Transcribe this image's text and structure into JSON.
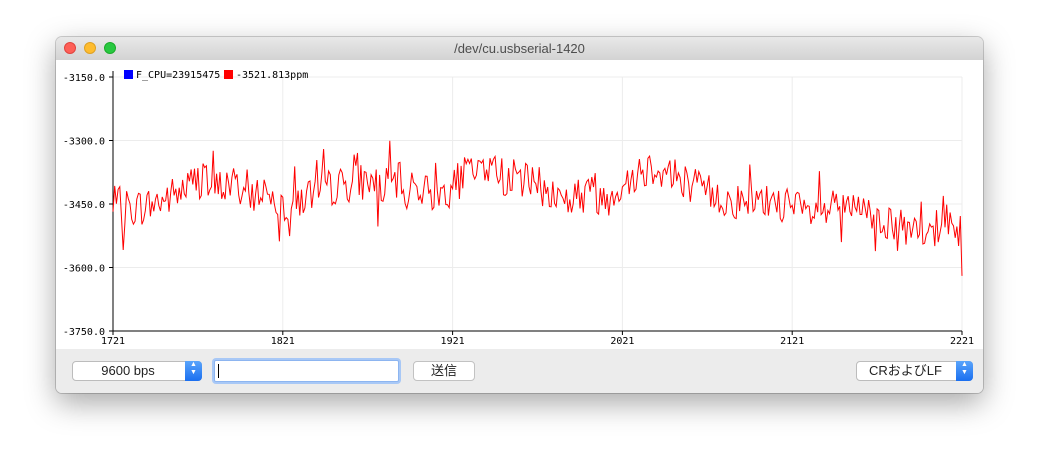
{
  "window": {
    "title": "/dev/cu.usbserial-1420"
  },
  "controls": {
    "baud_rate": "9600 bps",
    "input_value": "",
    "send_label": "送信",
    "line_ending": "CRおよびLF"
  },
  "icons": {
    "stepper": "up-down-chevron-icon"
  },
  "colors": {
    "series1": "#0000ff",
    "series2": "#ff0000",
    "accent": "#1a6ff0"
  },
  "chart_data": {
    "type": "line",
    "title": "",
    "xlabel": "",
    "ylabel": "",
    "xlim": [
      1721,
      2221
    ],
    "ylim": [
      -3750,
      -3150
    ],
    "xticks": [
      "1721",
      "1821",
      "1921",
      "2021",
      "2121",
      "2221"
    ],
    "yticks": [
      "-3150.0",
      "-3300.0",
      "-3450.0",
      "-3600.0",
      "-3750.0"
    ],
    "grid": true,
    "legend_position": "top-left",
    "series": [
      {
        "name": "F_CPU=23915475",
        "color": "#0000ff",
        "values": []
      },
      {
        "name": "-3521.813ppm",
        "color": "#ff0000",
        "anchors": [
          [
            1721,
            -3450
          ],
          [
            1731,
            -3460
          ],
          [
            1741,
            -3455
          ],
          [
            1751,
            -3440
          ],
          [
            1761,
            -3420
          ],
          [
            1771,
            -3390
          ],
          [
            1781,
            -3415
          ],
          [
            1791,
            -3400
          ],
          [
            1801,
            -3430
          ],
          [
            1811,
            -3415
          ],
          [
            1821,
            -3450
          ],
          [
            1831,
            -3440
          ],
          [
            1841,
            -3420
          ],
          [
            1851,
            -3410
          ],
          [
            1861,
            -3400
          ],
          [
            1871,
            -3395
          ],
          [
            1881,
            -3410
          ],
          [
            1891,
            -3395
          ],
          [
            1901,
            -3410
          ],
          [
            1911,
            -3430
          ],
          [
            1921,
            -3410
          ],
          [
            1931,
            -3370
          ],
          [
            1941,
            -3360
          ],
          [
            1951,
            -3385
          ],
          [
            1961,
            -3390
          ],
          [
            1971,
            -3405
          ],
          [
            1981,
            -3430
          ],
          [
            1991,
            -3440
          ],
          [
            2001,
            -3420
          ],
          [
            2011,
            -3440
          ],
          [
            2021,
            -3400
          ],
          [
            2031,
            -3370
          ],
          [
            2041,
            -3360
          ],
          [
            2051,
            -3380
          ],
          [
            2061,
            -3400
          ],
          [
            2071,
            -3420
          ],
          [
            2081,
            -3440
          ],
          [
            2091,
            -3445
          ],
          [
            2101,
            -3450
          ],
          [
            2111,
            -3440
          ],
          [
            2121,
            -3460
          ],
          [
            2131,
            -3475
          ],
          [
            2141,
            -3470
          ],
          [
            2151,
            -3450
          ],
          [
            2161,
            -3470
          ],
          [
            2171,
            -3480
          ],
          [
            2181,
            -3500
          ],
          [
            2191,
            -3520
          ],
          [
            2201,
            -3530
          ],
          [
            2211,
            -3480
          ],
          [
            2221,
            -3520
          ]
        ],
        "noise_amplitude": 45,
        "noise_seed": 7
      }
    ]
  }
}
